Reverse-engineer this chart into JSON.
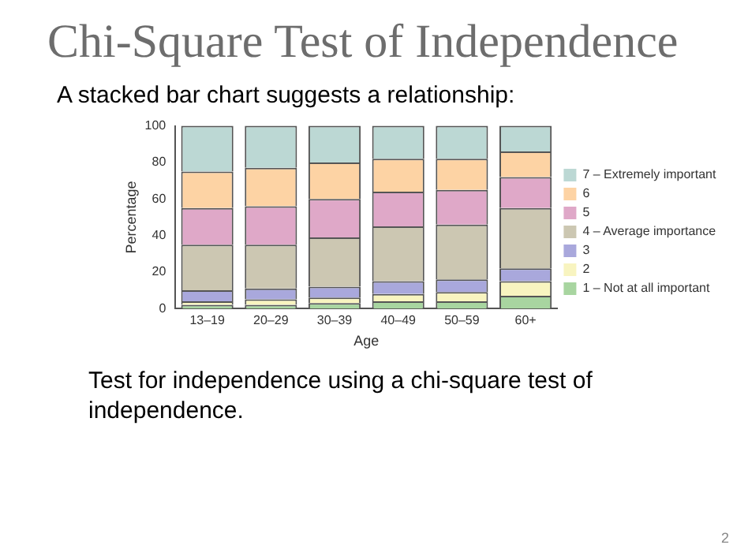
{
  "chart_data": {
    "type": "bar",
    "title": "Chi-Square Test of Independence",
    "subtitle": "A stacked bar chart suggests a relationship:",
    "annotations": [
      "Test for independence using a chi-square test of independence.",
      "2"
    ],
    "xlabel": "Age",
    "ylabel": "Percentage",
    "categories": [
      "13–19",
      "20–29",
      "30–39",
      "40–49",
      "50–59",
      "60+"
    ],
    "stacked": true,
    "ylim": [
      0,
      100
    ],
    "yticks": [
      0,
      20,
      40,
      60,
      80,
      100
    ],
    "grid": false,
    "legend": "right",
    "series": [
      {
        "name": "1 – Not at all important",
        "color": "#a8d5a0",
        "values": [
          2,
          2,
          3,
          4,
          4,
          7
        ]
      },
      {
        "name": "2",
        "color": "#f8f4c0",
        "values": [
          2,
          3,
          3,
          4,
          5,
          8
        ]
      },
      {
        "name": "3",
        "color": "#a9a8dc",
        "values": [
          6,
          6,
          6,
          7,
          7,
          7
        ]
      },
      {
        "name": "4 – Average importance",
        "color": "#ccc7b2",
        "values": [
          25,
          24,
          27,
          30,
          30,
          33
        ]
      },
      {
        "name": "5",
        "color": "#dfa8c8",
        "values": [
          20,
          21,
          21,
          19,
          19,
          17
        ]
      },
      {
        "name": "6",
        "color": "#fdd3a4",
        "values": [
          20,
          21,
          20,
          18,
          17,
          14
        ]
      },
      {
        "name": "7 – Extremely important",
        "color": "#bcd8d4",
        "values": [
          25,
          23,
          20,
          18,
          18,
          14
        ]
      }
    ]
  }
}
